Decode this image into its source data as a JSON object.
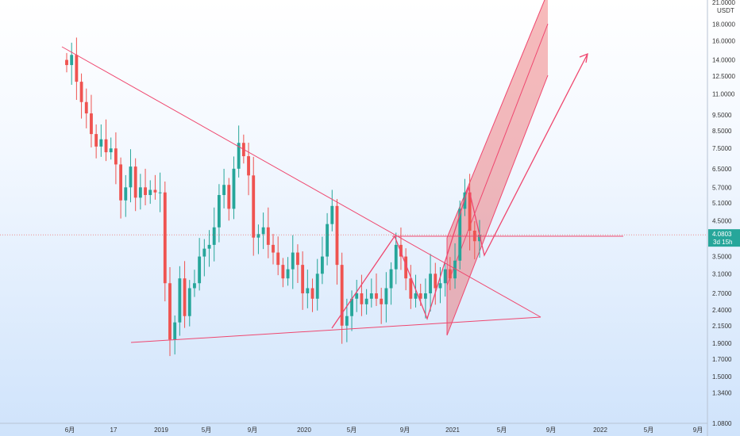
{
  "chart_data": {
    "type": "candlestick",
    "scale": "log",
    "grid": false,
    "unit": "USDT",
    "ylim": [
      1.08,
      21.0
    ],
    "y_ticks": [
      "21.0000",
      "18.0000",
      "16.0000",
      "14.0000",
      "12.5000",
      "11.0000",
      "9.5000",
      "8.5000",
      "7.5000",
      "6.5000",
      "5.7000",
      "5.1000",
      "4.5000",
      "3.5000",
      "3.1000",
      "2.7000",
      "2.4000",
      "2.1500",
      "1.9000",
      "1.7000",
      "1.5000",
      "1.3400",
      "1.0800"
    ],
    "x_ticks": [
      "6月",
      "17",
      "2019",
      "5月",
      "9月",
      "2020",
      "5月",
      "9月",
      "2021",
      "5月",
      "9月",
      "2022",
      "5月",
      "9月"
    ],
    "last_price": "4.0803",
    "countdown": "3d 15h",
    "colors": {
      "up": "#26a69a",
      "down": "#ef5350",
      "drawing": "#ef476f",
      "channel": "rgba(239,83,80,0.22)"
    },
    "candles_close": [
      13.5,
      14.5,
      12.0,
      10.4,
      9.6,
      8.3,
      7.6,
      8.0,
      7.3,
      7.5,
      6.7,
      5.2,
      5.7,
      6.6,
      5.3,
      5.7,
      5.4,
      5.6,
      5.5,
      5.5,
      2.9,
      1.95,
      2.2,
      3.0,
      2.3,
      2.8,
      2.9,
      3.5,
      3.7,
      3.8,
      4.3,
      5.4,
      5.8,
      4.9,
      6.5,
      7.8,
      7.1,
      6.2,
      4.0,
      4.1,
      4.3,
      3.8,
      3.6,
      3.3,
      3.0,
      3.2,
      3.6,
      3.3,
      2.7,
      2.8,
      2.6,
      3.1,
      3.5,
      4.4,
      5.0,
      3.3,
      2.15,
      2.3,
      2.6,
      2.7,
      2.5,
      2.6,
      2.7,
      2.6,
      2.5,
      2.8,
      3.2,
      3.8,
      3.5,
      3.0,
      2.6,
      2.7,
      2.6,
      2.7,
      3.1,
      2.8,
      2.9,
      3.2,
      3.0,
      3.4,
      4.9,
      5.5,
      4.2,
      3.9,
      4.08
    ]
  }
}
